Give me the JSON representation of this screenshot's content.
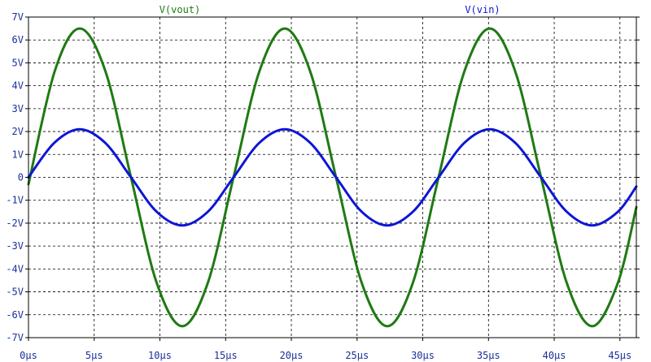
{
  "chart_data": {
    "type": "line",
    "colors": {
      "background": "#ffffff",
      "frame": "#000000",
      "grid": "#000000",
      "axis_text": "#1a2f9a"
    },
    "x": {
      "unit": "µs",
      "range": [
        0,
        46.25
      ],
      "ticks": [
        0,
        5,
        10,
        15,
        20,
        25,
        30,
        35,
        40,
        45
      ],
      "tick_labels": [
        "0µs",
        "5µs",
        "10µs",
        "15µs",
        "20µs",
        "25µs",
        "30µs",
        "35µs",
        "40µs",
        "45µs"
      ]
    },
    "y": {
      "unit": "V",
      "range": [
        -7,
        7
      ],
      "ticks": [
        7,
        6,
        5,
        4,
        3,
        2,
        1,
        0,
        -1,
        -2,
        -3,
        -4,
        -5,
        -6,
        -7
      ],
      "tick_labels": [
        "7V",
        "6V",
        "5V",
        "4V",
        "3V",
        "2V",
        "1V",
        "0",
        "-1V",
        "-2V",
        "-3V",
        "-4V",
        "-5V",
        "-6V",
        "-7V"
      ]
    },
    "grid": true,
    "series": [
      {
        "name": "V(vout)",
        "color": "#1f7a13",
        "points": [
          [
            0,
            -0.3
          ],
          [
            2,
            4.64
          ],
          [
            3.9,
            6.5
          ],
          [
            5.85,
            4.64
          ],
          [
            7.8,
            0
          ],
          [
            9.75,
            -4.6
          ],
          [
            11.7,
            -6.5
          ],
          [
            13.65,
            -4.6
          ],
          [
            15.6,
            0
          ],
          [
            17.55,
            4.6
          ],
          [
            19.5,
            6.5
          ],
          [
            21.45,
            4.6
          ],
          [
            23.4,
            0
          ],
          [
            25.35,
            -4.6
          ],
          [
            27.3,
            -6.5
          ],
          [
            29.25,
            -4.6
          ],
          [
            31.2,
            0
          ],
          [
            33.15,
            4.6
          ],
          [
            35.1,
            6.5
          ],
          [
            37.05,
            4.6
          ],
          [
            39.0,
            0
          ],
          [
            40.95,
            -4.6
          ],
          [
            42.9,
            -6.5
          ],
          [
            44.85,
            -4.6
          ],
          [
            46.25,
            -1.3
          ]
        ]
      },
      {
        "name": "V(vin)",
        "color": "#0d15d6",
        "points": [
          [
            0,
            0
          ],
          [
            1.95,
            1.5
          ],
          [
            3.9,
            2.1
          ],
          [
            5.85,
            1.5
          ],
          [
            7.8,
            0
          ],
          [
            9.75,
            -1.5
          ],
          [
            11.7,
            -2.1
          ],
          [
            13.65,
            -1.5
          ],
          [
            15.6,
            0
          ],
          [
            17.55,
            1.5
          ],
          [
            19.5,
            2.1
          ],
          [
            21.45,
            1.5
          ],
          [
            23.4,
            0
          ],
          [
            25.35,
            -1.5
          ],
          [
            27.3,
            -2.1
          ],
          [
            29.25,
            -1.5
          ],
          [
            31.2,
            0
          ],
          [
            33.15,
            1.5
          ],
          [
            35.1,
            2.1
          ],
          [
            37.05,
            1.5
          ],
          [
            39.0,
            0
          ],
          [
            40.95,
            -1.5
          ],
          [
            42.9,
            -2.1
          ],
          [
            44.85,
            -1.5
          ],
          [
            46.25,
            -0.4
          ]
        ]
      }
    ]
  }
}
